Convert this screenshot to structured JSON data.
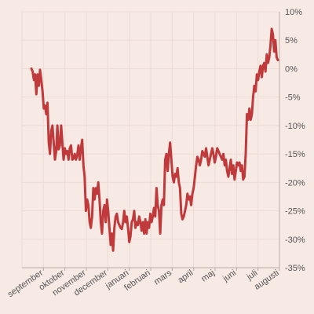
{
  "chart_data": {
    "type": "line",
    "title": "",
    "xlabel": "",
    "ylabel": "",
    "ylim": [
      -35,
      10
    ],
    "y_ticks": [
      10,
      5,
      0,
      -5,
      -10,
      -15,
      -20,
      -25,
      -30,
      -35
    ],
    "y_tick_labels": [
      "10%",
      "5%",
      "0%",
      "-5%",
      "-10%",
      "-15%",
      "-20%",
      "-25%",
      "-30%",
      "-35%"
    ],
    "x_tick_labels": [
      "september",
      "oktober",
      "november",
      "december",
      "januari",
      "februari",
      "mars",
      "april",
      "maj",
      "juni",
      "juli",
      "augusti"
    ],
    "grid": true,
    "legend": "none",
    "colors": {
      "line": "#c0393b",
      "background": "#f7e9e4",
      "grid": "#ecdcd6",
      "text": "#555555"
    },
    "series": [
      {
        "values": [
          0,
          -0.5,
          -2,
          -1,
          -4.5,
          -1,
          -3,
          -0.2,
          -2,
          -4,
          -7,
          -6.5,
          -8,
          -6,
          -13,
          -15,
          -11,
          -10,
          -13,
          -16,
          -14.5,
          -10,
          -14.2,
          -13.5,
          -10,
          -13,
          -16,
          -14,
          -15,
          -14.5,
          -16,
          -14,
          -13.5,
          -16,
          -15.8,
          -15,
          -16,
          -15.2,
          -13.5,
          -16,
          -14,
          -12.5,
          -17,
          -19,
          -25,
          -23,
          -24,
          -27,
          -28,
          -26,
          -21,
          -23,
          -21,
          -22,
          -20,
          -23,
          -27,
          -29,
          -25,
          -24,
          -27,
          -23,
          -25,
          -28,
          -31,
          -29,
          -32,
          -28,
          -26,
          -25.5,
          -27,
          -27.5,
          -28,
          -28.2,
          -27,
          -25,
          -27,
          -26,
          -28,
          -30.5,
          -29.5,
          -27,
          -26.5,
          -25,
          -28,
          -27,
          -27.5,
          -26,
          -27,
          -28.5,
          -27,
          -29,
          -26.5,
          -29,
          -27,
          -28,
          -25.5,
          -27,
          -26,
          -24.5,
          -26,
          -21,
          -24,
          -25,
          -29,
          -24,
          -23,
          -24,
          -16,
          -15,
          -18,
          -15,
          -13,
          -16,
          -19,
          -20,
          -18.5,
          -19,
          -17.5,
          -20,
          -21,
          -25.5,
          -26.5,
          -26,
          -25,
          -24,
          -22,
          -23,
          -22.5,
          -24,
          -22,
          -21,
          -19,
          -17,
          -15.5,
          -16,
          -17,
          -16,
          -14.5,
          -15,
          -15.5,
          -14,
          -15.5,
          -17,
          -16,
          -15,
          -14,
          -15,
          -16.5,
          -15.5,
          -14,
          -14.5,
          -15,
          -15.5,
          -16,
          -15,
          -17,
          -16,
          -18,
          -19,
          -17.5,
          -16,
          -18.5,
          -17,
          -19.5,
          -18,
          -16.5,
          -17,
          -16.5,
          -18,
          -17,
          -19.5,
          -19,
          -15,
          -8,
          -9,
          -7,
          -9,
          -8,
          -5,
          -3,
          -4,
          -1,
          -2,
          -0.5,
          0.5,
          -1.5,
          0.5,
          1,
          -0.5,
          2.5,
          1,
          2,
          4,
          7,
          6,
          3,
          5,
          2,
          1.5
        ]
      }
    ]
  }
}
